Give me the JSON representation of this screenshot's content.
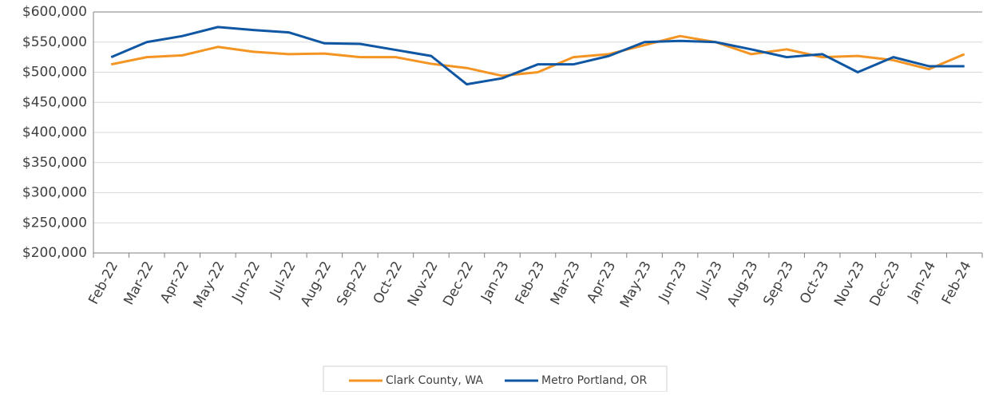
{
  "chart_data": {
    "type": "line",
    "categories": [
      "Feb-22",
      "Mar-22",
      "Apr-22",
      "May-22",
      "Jun-22",
      "Jul-22",
      "Aug-22",
      "Sep-22",
      "Oct-22",
      "Nov-22",
      "Dec-22",
      "Jan-23",
      "Feb-23",
      "Mar-23",
      "Apr-23",
      "May-23",
      "Jun-23",
      "Jul-23",
      "Aug-23",
      "Sep-23",
      "Oct-23",
      "Nov-23",
      "Dec-23",
      "Jan-24",
      "Feb-24"
    ],
    "series": [
      {
        "name": "Clark County, WA",
        "color": "#f39423",
        "values": [
          513000,
          525000,
          528000,
          542000,
          534000,
          530000,
          531000,
          525000,
          525000,
          514000,
          507000,
          494000,
          500000,
          525000,
          530000,
          545000,
          560000,
          550000,
          530000,
          538000,
          525000,
          527000,
          520000,
          505000,
          530000
        ]
      },
      {
        "name": "Metro Portland, OR",
        "color": "#0f56a3",
        "values": [
          525000,
          550000,
          560000,
          575000,
          570000,
          566000,
          548000,
          547000,
          537000,
          527000,
          480000,
          490000,
          513000,
          513000,
          527000,
          550000,
          552000,
          550000,
          538000,
          525000,
          530000,
          500000,
          525000,
          510000,
          510000
        ]
      }
    ],
    "ylim": [
      200000,
      600000
    ],
    "yticks": [
      {
        "value": 200000,
        "label": "$200,000"
      },
      {
        "value": 250000,
        "label": "$250,000"
      },
      {
        "value": 300000,
        "label": "$300,000"
      },
      {
        "value": 350000,
        "label": "$350,000"
      },
      {
        "value": 400000,
        "label": "$400,000"
      },
      {
        "value": 450000,
        "label": "$450,000"
      },
      {
        "value": 500000,
        "label": "$500,000"
      },
      {
        "value": 550000,
        "label": "$550,000"
      },
      {
        "value": 600000,
        "label": "$600,000"
      }
    ],
    "grid": true
  }
}
